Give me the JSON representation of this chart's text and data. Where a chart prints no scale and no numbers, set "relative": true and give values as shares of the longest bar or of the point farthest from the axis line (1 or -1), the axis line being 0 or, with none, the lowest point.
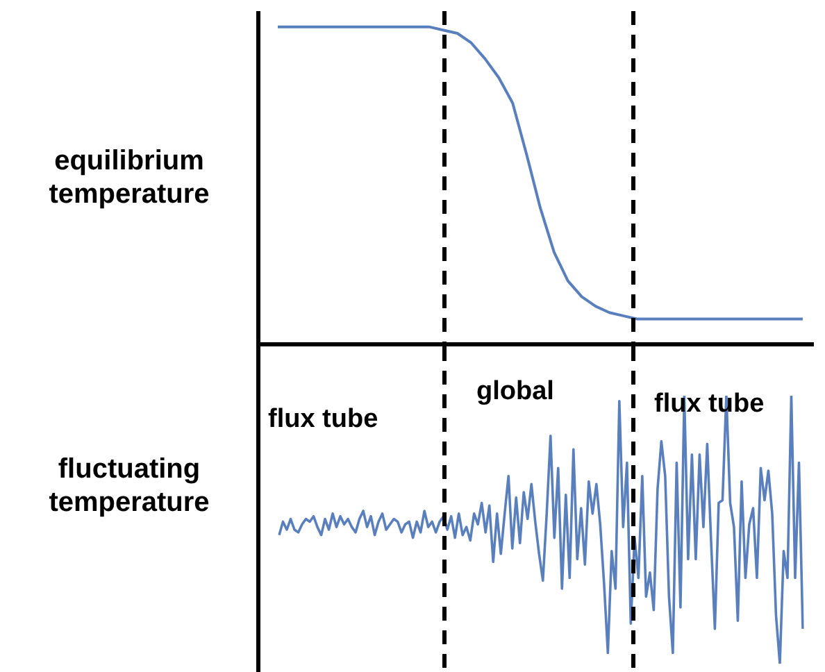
{
  "chart_data": [
    {
      "type": "line",
      "ylabel": "equilibrium temperature",
      "relative": true,
      "marker": "none",
      "line_style": "solid",
      "categories": [
        null,
        null,
        null,
        null,
        null,
        null,
        null,
        null,
        null,
        null,
        null,
        null,
        null,
        null,
        null,
        null,
        null,
        null,
        null,
        null,
        null,
        null,
        null,
        null,
        null,
        null,
        null,
        null,
        null,
        null,
        null,
        null,
        null,
        null,
        null,
        null,
        null,
        null,
        null
      ],
      "series": [
        {
          "color": "#5a7fbd",
          "values": [
            1,
            1,
            1,
            1,
            1,
            1,
            1,
            1,
            1,
            1,
            1,
            1,
            0.99,
            0.98,
            0.95,
            0.9,
            0.84,
            0.76,
            0.6,
            0.43,
            0.29,
            0.2,
            0.15,
            0.12,
            0.1,
            0.09,
            0.08,
            0.08,
            0.08,
            0.08,
            0.08,
            0.08,
            0.08,
            0.08,
            0.08,
            0.08,
            0.08,
            0.08,
            0.08
          ]
        }
      ]
    },
    {
      "type": "line",
      "ylabel": "fluctuating temperature",
      "relative": true,
      "marker": "none",
      "line_style": "solid",
      "annotations": [
        "flux tube",
        "global",
        "flux tube"
      ],
      "categories": [
        null,
        null,
        null,
        null,
        null,
        null,
        null,
        null,
        null,
        null,
        null,
        null,
        null,
        null,
        null,
        null,
        null,
        null,
        null,
        null,
        null,
        null,
        null,
        null,
        null,
        null,
        null,
        null,
        null,
        null,
        null,
        null,
        null,
        null,
        null,
        null,
        null,
        null,
        null,
        null,
        null,
        null,
        null,
        null,
        null,
        null,
        null,
        null,
        null,
        null,
        null,
        null,
        null,
        null,
        null,
        null,
        null,
        null,
        null,
        null,
        null,
        null,
        null,
        null,
        null,
        null,
        null,
        null,
        null,
        null,
        null,
        null,
        null,
        null,
        null,
        null,
        null,
        null,
        null,
        null,
        null,
        null,
        null,
        null,
        null,
        null,
        null,
        null,
        null,
        null,
        null,
        null,
        null,
        null,
        null,
        null,
        null,
        null,
        null,
        null,
        null,
        null,
        null,
        null,
        null,
        null,
        null,
        null,
        null,
        null,
        null,
        null,
        null,
        null,
        null,
        null,
        null,
        null,
        null,
        null,
        null,
        null,
        null,
        null,
        null,
        null,
        null,
        null,
        null,
        null,
        null,
        null,
        null,
        null,
        null,
        null,
        null,
        null
      ],
      "series": [
        {
          "color": "#5a7fbd",
          "values": [
            0.48,
            0.53,
            0.5,
            0.54,
            0.5,
            0.49,
            0.52,
            0.54,
            0.53,
            0.55,
            0.51,
            0.48,
            0.54,
            0.5,
            0.56,
            0.51,
            0.55,
            0.52,
            0.54,
            0.51,
            0.49,
            0.54,
            0.57,
            0.51,
            0.55,
            0.48,
            0.53,
            0.56,
            0.5,
            0.52,
            0.54,
            0.53,
            0.49,
            0.52,
            0.53,
            0.47,
            0.53,
            0.49,
            0.57,
            0.51,
            0.53,
            0.49,
            0.53,
            0.55,
            0.5,
            0.55,
            0.47,
            0.56,
            0.48,
            0.51,
            0.46,
            0.56,
            0.52,
            0.6,
            0.49,
            0.59,
            0.38,
            0.56,
            0.41,
            0.56,
            0.7,
            0.43,
            0.62,
            0.45,
            0.64,
            0.54,
            0.67,
            0.53,
            0.41,
            0.31,
            0.56,
            0.85,
            0.47,
            0.73,
            0.28,
            0.63,
            0.32,
            0.8,
            0.39,
            0.58,
            0.37,
            0.68,
            0.56,
            0.67,
            0.52,
            0.3,
            0.04,
            0.42,
            0.28,
            0.98,
            0.51,
            0.75,
            0.15,
            0.47,
            0.32,
            0.7,
            0.25,
            0.34,
            0.2,
            0.65,
            0.83,
            0.7,
            0.25,
            0.04,
            0.75,
            0.21,
            1,
            0.39,
            0.78,
            0.39,
            0.78,
            0.51,
            0.82,
            0.46,
            0.13,
            0.6,
            0.61,
            1,
            0.6,
            0.51,
            0.16,
            0.68,
            0.32,
            0.52,
            0.58,
            0.32,
            0.73,
            0.61,
            0.72,
            0.56,
            0.18,
            0,
            0.42,
            0.32,
            1,
            0.32,
            0.75,
            0.13
          ]
        }
      ]
    }
  ]
}
